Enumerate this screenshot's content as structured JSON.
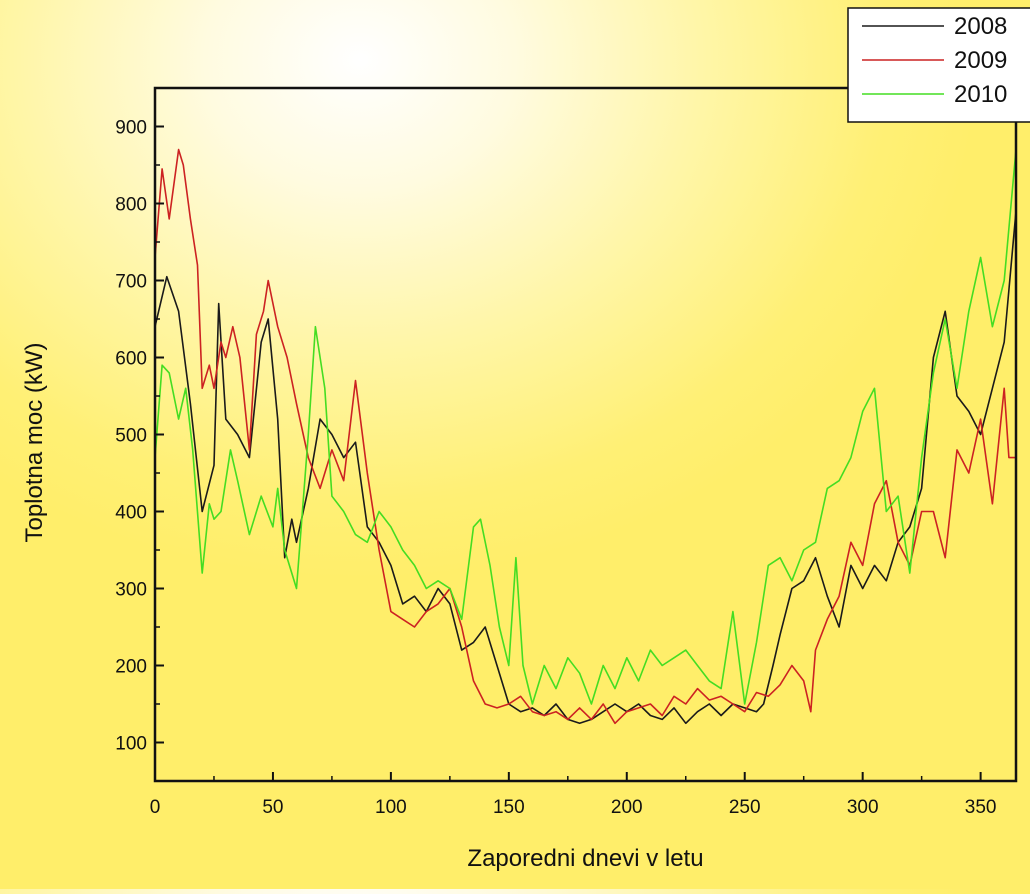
{
  "chart_data": {
    "type": "line",
    "title": "",
    "xlabel": "Zaporedni dnevi v letu",
    "ylabel": "Toplotna moc (kW)",
    "xlim": [
      0,
      365
    ],
    "ylim": [
      50,
      950
    ],
    "xticks": [
      0,
      50,
      100,
      150,
      200,
      250,
      300,
      350
    ],
    "yticks": [
      100,
      200,
      300,
      400,
      500,
      600,
      700,
      800,
      900
    ],
    "grid": false,
    "legend": "top-right",
    "series": [
      {
        "name": "2008",
        "color": "#1a1a1a",
        "x": [
          0,
          5,
          10,
          15,
          20,
          25,
          27,
          30,
          35,
          40,
          45,
          48,
          52,
          55,
          58,
          60,
          65,
          70,
          75,
          80,
          85,
          90,
          95,
          100,
          105,
          110,
          115,
          120,
          125,
          130,
          135,
          140,
          145,
          150,
          155,
          160,
          165,
          170,
          175,
          180,
          185,
          190,
          195,
          200,
          205,
          210,
          215,
          220,
          225,
          230,
          235,
          240,
          245,
          250,
          255,
          258,
          262,
          265,
          270,
          275,
          280,
          285,
          290,
          295,
          300,
          305,
          310,
          315,
          320,
          325,
          330,
          335,
          340,
          345,
          350,
          355,
          360,
          365
        ],
        "values": [
          640,
          705,
          660,
          540,
          400,
          460,
          670,
          520,
          500,
          470,
          620,
          650,
          520,
          340,
          390,
          360,
          430,
          520,
          500,
          470,
          490,
          380,
          360,
          330,
          280,
          290,
          270,
          300,
          280,
          220,
          230,
          250,
          200,
          150,
          140,
          145,
          135,
          150,
          130,
          125,
          130,
          140,
          150,
          140,
          150,
          135,
          130,
          145,
          125,
          140,
          150,
          135,
          150,
          145,
          140,
          150,
          200,
          240,
          300,
          310,
          340,
          290,
          250,
          330,
          300,
          330,
          310,
          360,
          380,
          430,
          600,
          660,
          550,
          530,
          500,
          560,
          620,
          790
        ]
      },
      {
        "name": "2009",
        "color": "#cc2222",
        "x": [
          0,
          3,
          6,
          10,
          12,
          15,
          18,
          20,
          23,
          25,
          28,
          30,
          33,
          36,
          40,
          43,
          46,
          48,
          52,
          56,
          60,
          65,
          70,
          75,
          80,
          85,
          90,
          95,
          100,
          105,
          110,
          115,
          120,
          125,
          130,
          135,
          140,
          145,
          150,
          155,
          160,
          165,
          170,
          175,
          180,
          185,
          190,
          195,
          200,
          205,
          210,
          215,
          220,
          225,
          230,
          235,
          240,
          245,
          250,
          255,
          260,
          265,
          270,
          275,
          278,
          280,
          285,
          290,
          295,
          300,
          305,
          310,
          315,
          320,
          325,
          330,
          335,
          340,
          345,
          350,
          355,
          360,
          362,
          365
        ],
        "values": [
          730,
          845,
          780,
          870,
          850,
          780,
          720,
          560,
          590,
          560,
          620,
          600,
          640,
          600,
          480,
          630,
          660,
          700,
          640,
          600,
          540,
          470,
          430,
          480,
          440,
          570,
          450,
          350,
          270,
          260,
          250,
          270,
          280,
          300,
          250,
          180,
          150,
          145,
          150,
          160,
          140,
          135,
          140,
          130,
          145,
          130,
          150,
          125,
          140,
          145,
          150,
          135,
          160,
          150,
          170,
          155,
          160,
          150,
          140,
          165,
          160,
          175,
          200,
          180,
          140,
          220,
          260,
          290,
          360,
          330,
          410,
          440,
          360,
          330,
          400,
          400,
          340,
          480,
          450,
          520,
          410,
          560,
          470,
          470
        ]
      },
      {
        "name": "2010",
        "color": "#44dd22",
        "x": [
          0,
          3,
          6,
          10,
          13,
          16,
          20,
          23,
          25,
          28,
          32,
          35,
          40,
          45,
          50,
          52,
          55,
          60,
          65,
          68,
          72,
          75,
          80,
          85,
          90,
          95,
          100,
          105,
          110,
          115,
          120,
          125,
          130,
          135,
          138,
          142,
          146,
          150,
          153,
          156,
          160,
          165,
          170,
          175,
          180,
          185,
          190,
          195,
          200,
          205,
          210,
          215,
          220,
          225,
          230,
          235,
          240,
          245,
          250,
          255,
          260,
          265,
          270,
          275,
          280,
          285,
          290,
          295,
          300,
          305,
          310,
          315,
          320,
          325,
          330,
          335,
          340,
          345,
          350,
          355,
          360,
          365
        ],
        "values": [
          470,
          590,
          580,
          520,
          560,
          480,
          320,
          410,
          390,
          400,
          480,
          440,
          370,
          420,
          380,
          430,
          350,
          300,
          500,
          640,
          560,
          420,
          400,
          370,
          360,
          400,
          380,
          350,
          330,
          300,
          310,
          300,
          260,
          380,
          390,
          330,
          250,
          200,
          340,
          200,
          150,
          200,
          170,
          210,
          190,
          150,
          200,
          170,
          210,
          180,
          220,
          200,
          210,
          220,
          200,
          180,
          170,
          270,
          150,
          230,
          330,
          340,
          310,
          350,
          360,
          430,
          440,
          470,
          530,
          560,
          400,
          420,
          320,
          470,
          580,
          650,
          560,
          660,
          730,
          640,
          700,
          870
        ]
      }
    ]
  }
}
